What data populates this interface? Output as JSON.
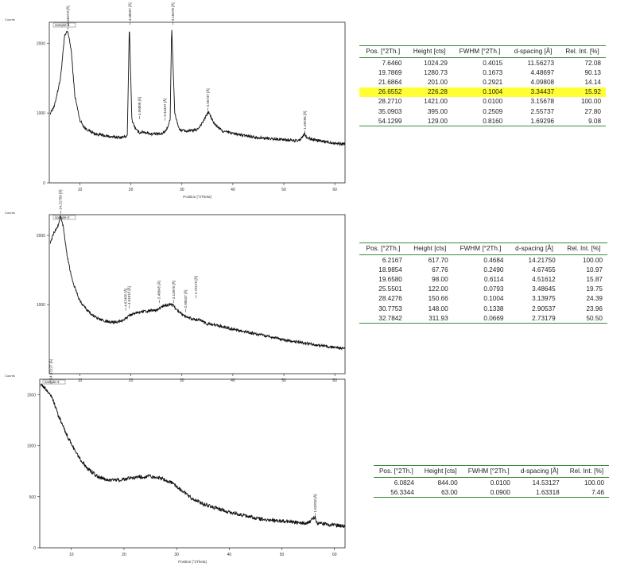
{
  "chart_data": [
    {
      "type": "line",
      "counts_label": "Counts",
      "xlabel": "Position [°2Theta]",
      "xlim": [
        4,
        62
      ],
      "ylim": [
        0,
        2300
      ],
      "xticks": [
        "10",
        "20",
        "30",
        "40",
        "50",
        "60"
      ],
      "yticks": [
        {
          "v": 0,
          "t": "0"
        },
        {
          "v": 1000,
          "t": "1000"
        },
        {
          "v": 2000,
          "t": "2000"
        }
      ],
      "legend": "sample-1",
      "baseline": [
        [
          4.2,
          1000
        ],
        [
          5,
          1100
        ],
        [
          6.2,
          1500
        ],
        [
          7,
          2100
        ],
        [
          7.6,
          2180
        ],
        [
          8.3,
          1900
        ],
        [
          9,
          1250
        ],
        [
          10,
          900
        ],
        [
          11,
          780
        ],
        [
          13,
          700
        ],
        [
          16,
          660
        ],
        [
          18,
          650
        ],
        [
          19.3,
          670
        ],
        [
          19.7,
          2250
        ],
        [
          20.2,
          900
        ],
        [
          21,
          760
        ],
        [
          21.7,
          720
        ],
        [
          22.5,
          730
        ],
        [
          24,
          700
        ],
        [
          26,
          700
        ],
        [
          27,
          760
        ],
        [
          27.7,
          900
        ],
        [
          28.0,
          2250
        ],
        [
          28.6,
          1000
        ],
        [
          29.5,
          760
        ],
        [
          31,
          740
        ],
        [
          33,
          760
        ],
        [
          34.2,
          880
        ],
        [
          35.2,
          1020
        ],
        [
          36.3,
          850
        ],
        [
          38,
          740
        ],
        [
          42,
          680
        ],
        [
          46,
          640
        ],
        [
          50,
          620
        ],
        [
          53,
          600
        ],
        [
          54.1,
          700
        ],
        [
          54.6,
          640
        ],
        [
          57,
          600
        ],
        [
          61,
          560
        ],
        [
          62,
          560
        ]
      ],
      "noise": 20,
      "peaks": [
        {
          "x": 7.646,
          "y": 2180,
          "label": "11.56273 [Å]"
        },
        {
          "x": 19.7869,
          "y": 2250,
          "label": "4.48697 [Å]"
        },
        {
          "x": 21.6864,
          "y": 900,
          "label": "4.09808 [Å]"
        },
        {
          "x": 26.6552,
          "y": 880,
          "label": "3.34437 [Å]"
        },
        {
          "x": 28.271,
          "y": 2250,
          "label": "3.15678 [Å]"
        },
        {
          "x": 35.0903,
          "y": 1020,
          "label": "2.55737 [Å]"
        },
        {
          "x": 54.1299,
          "y": 700,
          "label": "1.69296 [Å]"
        }
      ],
      "table": {
        "headers": [
          "Pos. [°2Th.]",
          "Height [cts]",
          "FWHM [°2Th.]",
          "d-spacing [Å]",
          "Rel. Int. [%]"
        ],
        "highlight_row": 3,
        "rows": [
          [
            "7.6460",
            "1024.29",
            "0.4015",
            "11.56273",
            "72.08"
          ],
          [
            "19.7869",
            "1280.73",
            "0.1673",
            "4.48697",
            "90.13"
          ],
          [
            "21.6864",
            "201.00",
            "0.2921",
            "4.09808",
            "14.14"
          ],
          [
            "26.6552",
            "226.28",
            "0.1004",
            "3.34437",
            "15.92"
          ],
          [
            "28.2710",
            "1421.00",
            "0.0100",
            "3.15678",
            "100.00"
          ],
          [
            "35.0903",
            "395.00",
            "0.2509",
            "2.55737",
            "27.80"
          ],
          [
            "54.1299",
            "129.00",
            "0.8160",
            "1.69296",
            "9.08"
          ]
        ]
      }
    },
    {
      "type": "line",
      "counts_label": "Counts",
      "xlabel": "",
      "xlim": [
        4,
        62
      ],
      "ylim": [
        0,
        2300
      ],
      "xticks": [
        "10",
        "20",
        "30",
        "40",
        "50",
        "60"
      ],
      "yticks": [
        {
          "v": 1000,
          "t": "1000"
        },
        {
          "v": 2000,
          "t": "2000"
        }
      ],
      "legend": "sample-2",
      "baseline": [
        [
          4.2,
          1900
        ],
        [
          5,
          2050
        ],
        [
          5.8,
          2150
        ],
        [
          6.2,
          2300
        ],
        [
          6.8,
          2100
        ],
        [
          7.5,
          1700
        ],
        [
          8.5,
          1350
        ],
        [
          10,
          1050
        ],
        [
          12,
          870
        ],
        [
          14,
          780
        ],
        [
          16,
          740
        ],
        [
          18,
          760
        ],
        [
          20,
          850
        ],
        [
          21,
          880
        ],
        [
          23,
          900
        ],
        [
          25,
          920
        ],
        [
          26,
          960
        ],
        [
          27,
          990
        ],
        [
          27.7,
          1000
        ],
        [
          28.4,
          980
        ],
        [
          29,
          920
        ],
        [
          30,
          860
        ],
        [
          31,
          820
        ],
        [
          32.5,
          780
        ],
        [
          33.5,
          780
        ],
        [
          35,
          720
        ],
        [
          37,
          700
        ],
        [
          40,
          640
        ],
        [
          45,
          570
        ],
        [
          50,
          490
        ],
        [
          55,
          430
        ],
        [
          60,
          380
        ],
        [
          62,
          360
        ]
      ],
      "noise": 20,
      "peaks": [
        {
          "x": 6.2167,
          "y": 2300,
          "label": "14.21750 [Å]"
        },
        {
          "x": 18.9854,
          "y": 900,
          "label": "4.67455 [Å]"
        },
        {
          "x": 19.658,
          "y": 930,
          "label": "4.51612 [Å]"
        },
        {
          "x": 25.5501,
          "y": 1010,
          "label": "3.48645 [Å]"
        },
        {
          "x": 28.4276,
          "y": 1010,
          "label": "3.13975 [Å]"
        },
        {
          "x": 30.7753,
          "y": 880,
          "label": "2.90537 [Å]"
        },
        {
          "x": 32.7842,
          "y": 1080,
          "label": "2.73179 [Å]"
        }
      ],
      "table": {
        "headers": [
          "Pos. [°2Th.]",
          "Height [cts]",
          "FWHM [°2Th.]",
          "d-spacing [Å]",
          "Rel. Int. [%]"
        ],
        "highlight_row": -1,
        "rows": [
          [
            "6.2167",
            "617.70",
            "0.4684",
            "14.21750",
            "100.00"
          ],
          [
            "18.9854",
            "67.76",
            "0.2490",
            "4.67455",
            "10.97"
          ],
          [
            "19.6580",
            "98.00",
            "0.6114",
            "4.51612",
            "15.87"
          ],
          [
            "25.5501",
            "122.00",
            "0.0793",
            "3.48645",
            "19.75"
          ],
          [
            "28.4276",
            "150.66",
            "0.1004",
            "3.13975",
            "24.39"
          ],
          [
            "30.7753",
            "148.00",
            "0.1338",
            "2.90537",
            "23.96"
          ],
          [
            "32.7842",
            "311.93",
            "0.0669",
            "2.73179",
            "50.50"
          ]
        ]
      }
    },
    {
      "type": "line",
      "counts_label": "Counts",
      "xlabel": "Position [°2Theta]",
      "xlim": [
        4,
        62
      ],
      "ylim": [
        0,
        1650
      ],
      "xticks": [
        "10",
        "20",
        "30",
        "40",
        "50",
        "60"
      ],
      "yticks": [
        {
          "v": 0,
          "t": "0"
        },
        {
          "v": 500,
          "t": "500"
        },
        {
          "v": 1000,
          "t": "1000"
        },
        {
          "v": 1500,
          "t": "1500"
        }
      ],
      "legend": "sample-3",
      "baseline": [
        [
          4.2,
          1600
        ],
        [
          5,
          1560
        ],
        [
          6,
          1500
        ],
        [
          6.5,
          1450
        ],
        [
          7.5,
          1300
        ],
        [
          9,
          1120
        ],
        [
          11,
          920
        ],
        [
          13,
          780
        ],
        [
          15,
          700
        ],
        [
          17,
          660
        ],
        [
          20,
          670
        ],
        [
          22,
          690
        ],
        [
          25,
          700
        ],
        [
          27,
          680
        ],
        [
          29,
          640
        ],
        [
          31,
          560
        ],
        [
          33,
          480
        ],
        [
          35,
          430
        ],
        [
          38,
          380
        ],
        [
          40,
          350
        ],
        [
          45,
          290
        ],
        [
          50,
          260
        ],
        [
          55,
          240
        ],
        [
          56.3,
          300
        ],
        [
          56.7,
          240
        ],
        [
          60,
          220
        ],
        [
          62,
          215
        ]
      ],
      "noise": 18,
      "peaks": [
        {
          "x": 6.0824,
          "y": 1600,
          "label": "14.53127 [Å]"
        },
        {
          "x": 56.3344,
          "y": 300,
          "label": "1.63318 [Å]"
        }
      ],
      "table": {
        "headers": [
          "Pos. [°2Th.]",
          "Height [cts]",
          "FWHM [°2Th.]",
          "d-spacing [Å]",
          "Rel. Int. [%]"
        ],
        "highlight_row": -1,
        "rows": [
          [
            "6.0824",
            "844.00",
            "0.0100",
            "14.53127",
            "100.00"
          ],
          [
            "56.3344",
            "63.00",
            "0.0900",
            "1.63318",
            "7.46"
          ]
        ]
      }
    }
  ]
}
